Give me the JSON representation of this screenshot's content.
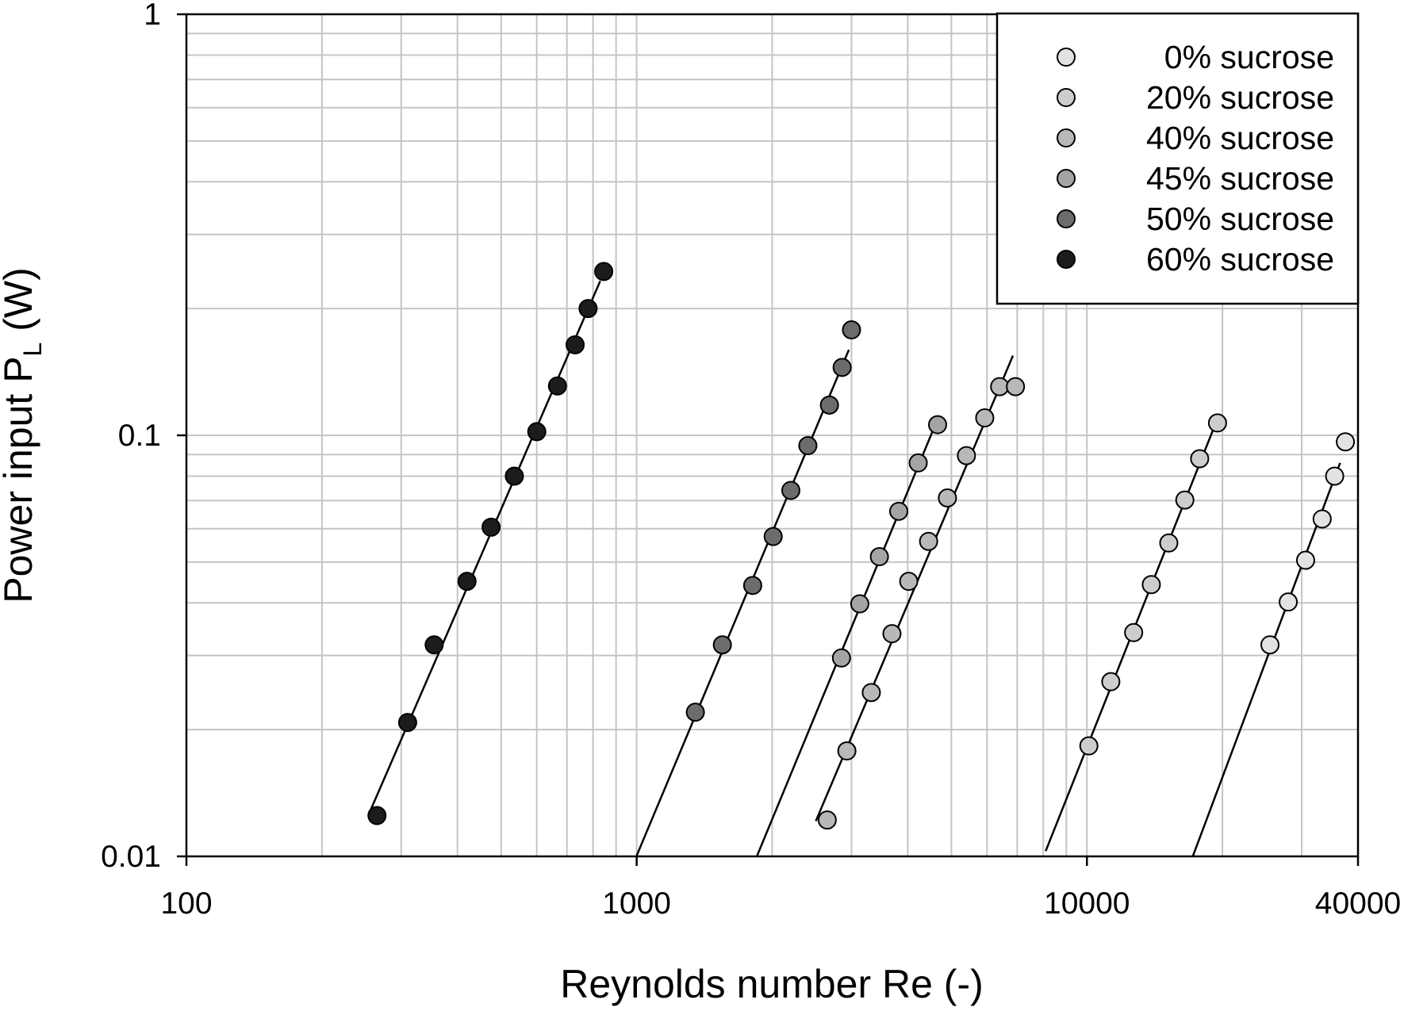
{
  "chart_data": {
    "type": "scatter",
    "title": "",
    "xlabel": "Reynolds number Re (-)",
    "ylabel": {
      "main": "Power input P",
      "subscript": "L",
      "unit": " (W)"
    },
    "xscale": "log",
    "yscale": "log",
    "xlim": [
      100,
      40000
    ],
    "ylim": [
      0.01,
      1
    ],
    "x_ticks": [
      {
        "value": 100,
        "label": "100"
      },
      {
        "value": 1000,
        "label": "1000"
      },
      {
        "value": 10000,
        "label": "10000"
      },
      {
        "value": 40000,
        "label": "40000"
      }
    ],
    "y_ticks": [
      {
        "value": 0.01,
        "label": "0.01"
      },
      {
        "value": 0.1,
        "label": "0.1"
      },
      {
        "value": 1,
        "label": "1"
      }
    ],
    "grid": true,
    "legend_position": "top-right",
    "series": [
      {
        "name": "0% sucrose",
        "color": "#e2e2e2",
        "x": [
          25500,
          28000,
          30600,
          33300,
          35500,
          37500
        ],
        "y": [
          0.0318,
          0.0402,
          0.0505,
          0.0633,
          0.08,
          0.0965
        ],
        "fit_x": [
          16800,
          36500
        ]
      },
      {
        "name": "20% sucrose",
        "color": "#cdcdcd",
        "x": [
          10100,
          11300,
          12700,
          13900,
          15200,
          16500,
          17800,
          19500
        ],
        "y": [
          0.0183,
          0.026,
          0.034,
          0.0442,
          0.0555,
          0.0702,
          0.088,
          0.107
        ],
        "fit_x": [
          8100,
          19200
        ]
      },
      {
        "name": "40% sucrose",
        "color": "#b8b8b8",
        "x": [
          2650,
          2930,
          3320,
          3690,
          4020,
          4450,
          4900,
          5400,
          5930,
          6400,
          6940
        ],
        "y": [
          0.0122,
          0.0178,
          0.0245,
          0.0338,
          0.045,
          0.056,
          0.071,
          0.0895,
          0.11,
          0.1305,
          0.1305
        ],
        "fit_x": [
          2500,
          6850
        ]
      },
      {
        "name": "45% sucrose",
        "color": "#a4a4a4",
        "x": [
          2850,
          3130,
          3460,
          3820,
          4220,
          4660
        ],
        "y": [
          0.0296,
          0.0398,
          0.0515,
          0.066,
          0.086,
          0.106
        ],
        "fit_x": [
          1600,
          4600
        ]
      },
      {
        "name": "50% sucrose",
        "color": "#6c6c6c",
        "x": [
          1350,
          1550,
          1810,
          2010,
          2200,
          2400,
          2680,
          2860,
          3000
        ],
        "y": [
          0.022,
          0.0318,
          0.044,
          0.0575,
          0.074,
          0.0945,
          0.118,
          0.145,
          0.178
        ],
        "fit_x": [
          1000,
          2960
        ]
      },
      {
        "name": "60% sucrose",
        "color": "#1c1c1c",
        "x": [
          265,
          310,
          355,
          420,
          475,
          535,
          600,
          667,
          730,
          780,
          845
        ],
        "y": [
          0.0125,
          0.0208,
          0.0318,
          0.045,
          0.0605,
          0.08,
          0.102,
          0.131,
          0.164,
          0.2,
          0.245
        ],
        "fit_x": [
          255,
          830
        ]
      }
    ]
  }
}
